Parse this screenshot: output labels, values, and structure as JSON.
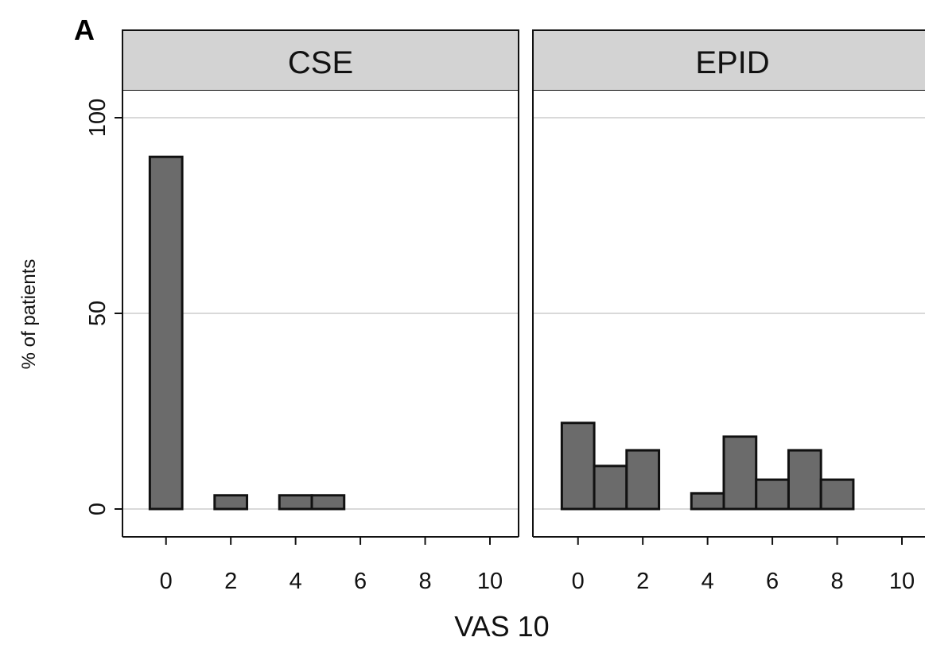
{
  "chart_data": {
    "type": "bar",
    "panel_label": "A",
    "xlabel": "VAS 10",
    "ylabel": "% of patients",
    "ylim": [
      0,
      100
    ],
    "yticks": [
      0,
      50,
      100
    ],
    "xlim": [
      -1,
      10
    ],
    "xticks": [
      0,
      2,
      4,
      6,
      8,
      10
    ],
    "bar_width": 1,
    "grid": true,
    "bar_color": "#6b6b6b",
    "strip_color": "#d3d3d3",
    "panels": [
      {
        "title": "CSE",
        "x": [
          0,
          2,
          4,
          5
        ],
        "values": [
          90,
          3.5,
          3.5,
          3.5
        ]
      },
      {
        "title": "EPID",
        "x": [
          0,
          1,
          2,
          4,
          5,
          6,
          7,
          8
        ],
        "values": [
          22,
          11,
          15,
          4,
          18.5,
          7.5,
          15,
          7.5
        ]
      }
    ]
  }
}
